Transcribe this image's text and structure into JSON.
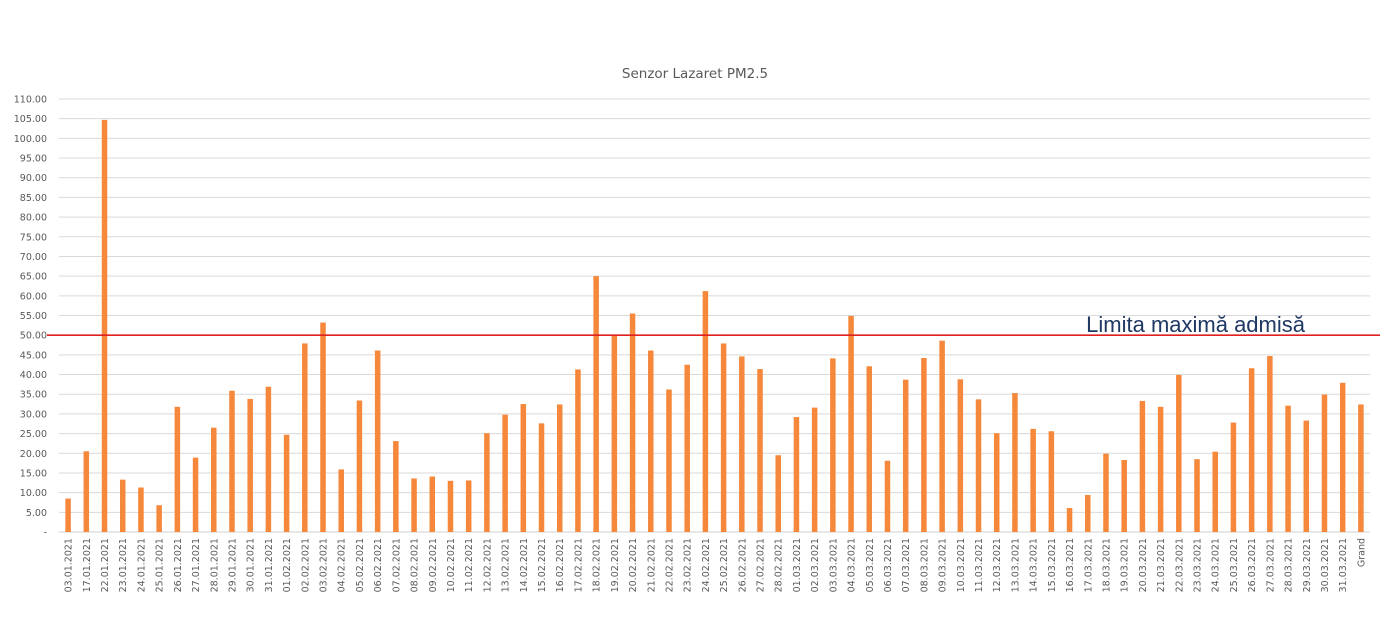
{
  "chart_data": {
    "type": "bar",
    "title": "Senzor Lazaret PM2.5",
    "xlabel": "",
    "ylabel": "",
    "ylim": [
      0,
      110
    ],
    "yticks": [
      {
        "value": 0,
        "label": "-"
      },
      {
        "value": 5,
        "label": "5.00"
      },
      {
        "value": 10,
        "label": "10.00"
      },
      {
        "value": 15,
        "label": "15.00"
      },
      {
        "value": 20,
        "label": "20.00"
      },
      {
        "value": 25,
        "label": "25.00"
      },
      {
        "value": 30,
        "label": "30.00"
      },
      {
        "value": 35,
        "label": "35.00"
      },
      {
        "value": 40,
        "label": "40.00"
      },
      {
        "value": 45,
        "label": "45.00"
      },
      {
        "value": 50,
        "label": "50.00"
      },
      {
        "value": 55,
        "label": "55.00"
      },
      {
        "value": 60,
        "label": "60.00"
      },
      {
        "value": 65,
        "label": "65.00"
      },
      {
        "value": 70,
        "label": "70.00"
      },
      {
        "value": 75,
        "label": "75.00"
      },
      {
        "value": 80,
        "label": "80.00"
      },
      {
        "value": 85,
        "label": "85.00"
      },
      {
        "value": 90,
        "label": "90.00"
      },
      {
        "value": 95,
        "label": "95.00"
      },
      {
        "value": 100,
        "label": "100.00"
      },
      {
        "value": 105,
        "label": "105.00"
      },
      {
        "value": 110,
        "label": "110.00"
      }
    ],
    "grid": true,
    "bar_color": "#f5883a",
    "categories": [
      "03.01.2021",
      "17.01.2021",
      "22.01.2021",
      "23.01.2021",
      "24.01.2021",
      "25.01.2021",
      "26.01.2021",
      "27.01.2021",
      "28.01.2021",
      "29.01.2021",
      "30.01.2021",
      "31.01.2021",
      "01.02.2021",
      "02.02.2021",
      "03.02.2021",
      "04.02.2021",
      "05.02.2021",
      "06.02.2021",
      "07.02.2021",
      "08.02.2021",
      "09.02.2021",
      "10.02.2021",
      "11.02.2021",
      "12.02.2021",
      "13.02.2021",
      "14.02.2021",
      "15.02.2021",
      "16.02.2021",
      "17.02.2021",
      "18.02.2021",
      "19.02.2021",
      "20.02.2021",
      "21.02.2021",
      "22.02.2021",
      "23.02.2021",
      "24.02.2021",
      "25.02.2021",
      "26.02.2021",
      "27.02.2021",
      "28.02.2021",
      "01.03.2021",
      "02.03.2021",
      "03.03.2021",
      "04.03.2021",
      "05.03.2021",
      "06.03.2021",
      "07.03.2021",
      "08.03.2021",
      "09.03.2021",
      "10.03.2021",
      "11.03.2021",
      "12.03.2021",
      "13.03.2021",
      "14.03.2021",
      "15.03.2021",
      "16.03.2021",
      "17.03.2021",
      "18.03.2021",
      "19.03.2021",
      "20.03.2021",
      "21.03.2021",
      "22.03.2021",
      "23.03.2021",
      "24.03.2021",
      "25.03.2021",
      "26.03.2021",
      "27.03.2021",
      "28.03.2021",
      "29.03.2021",
      "30.03.2021",
      "31.03.2021",
      "Grand"
    ],
    "values": [
      8.5,
      20.5,
      104.7,
      13.3,
      11.3,
      6.8,
      31.8,
      18.9,
      26.5,
      35.9,
      33.8,
      36.9,
      24.7,
      47.9,
      53.2,
      15.9,
      33.4,
      46.1,
      23.1,
      13.6,
      14.1,
      13.0,
      13.1,
      25.1,
      29.8,
      32.5,
      27.6,
      32.4,
      41.3,
      65.0,
      50.0,
      55.5,
      46.1,
      36.2,
      42.5,
      61.2,
      47.9,
      44.6,
      41.4,
      19.5,
      29.2,
      31.6,
      44.1,
      54.9,
      42.1,
      18.1,
      38.7,
      44.2,
      48.6,
      38.8,
      33.7,
      25.1,
      35.3,
      26.2,
      25.6,
      6.1,
      9.4,
      19.9,
      18.3,
      33.3,
      31.8,
      39.9,
      18.5,
      20.4,
      27.8,
      41.6,
      44.7,
      32.1,
      28.3,
      34.9,
      37.9,
      32.4
    ],
    "reference_line": {
      "value": 50,
      "label": "Limita maximă admisă",
      "color": "#e02020"
    }
  }
}
